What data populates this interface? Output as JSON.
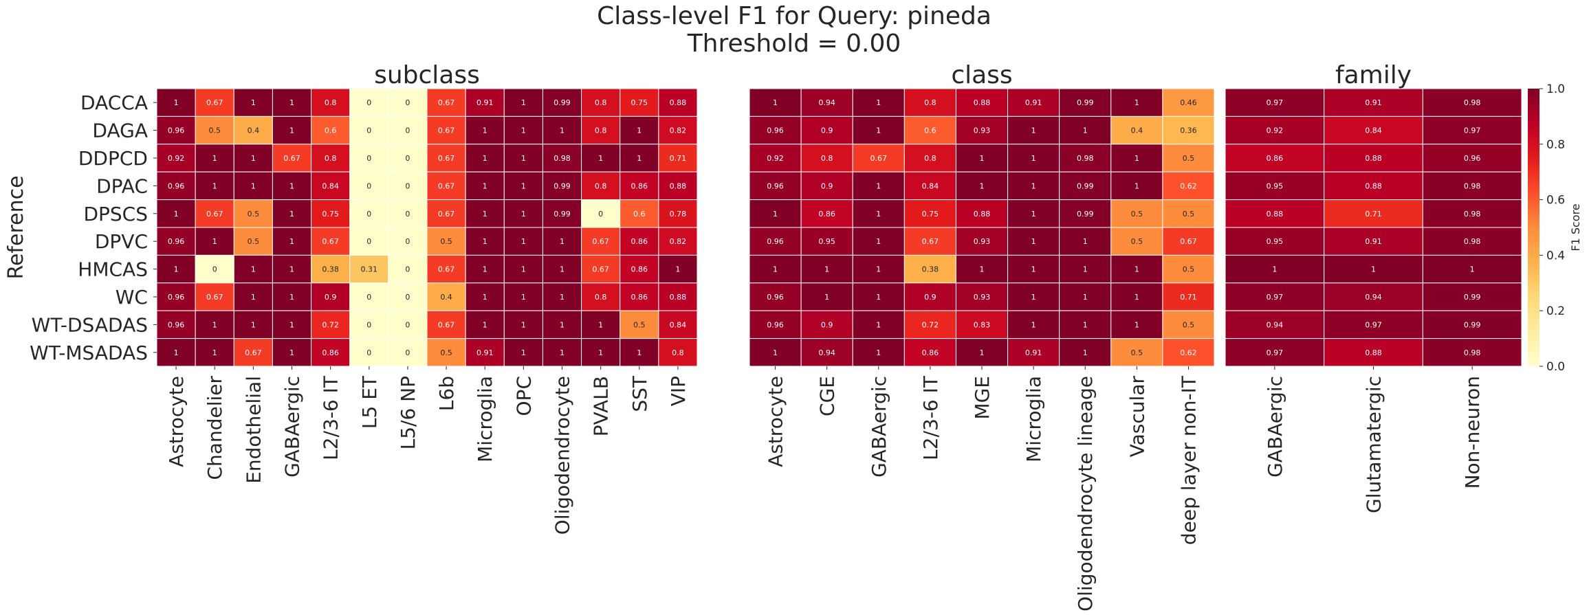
{
  "chart_data": {
    "type": "heatmap",
    "title": "Class-level F1 for Query: pineda",
    "subtitle": "Threshold = 0.00",
    "ylabel": "Reference",
    "rows": [
      "DACCA",
      "DAGA",
      "DDPCD",
      "DPAC",
      "DPSCS",
      "DPVC",
      "HMCAS",
      "WC",
      "WT-DSADAS",
      "WT-MSADAS"
    ],
    "colorbar": {
      "label": "F1 Score",
      "range": [
        0,
        1
      ],
      "ticks": [
        "0.0",
        "0.2",
        "0.4",
        "0.6",
        "0.8",
        "1.0"
      ]
    },
    "panels": [
      {
        "title": "subclass",
        "columns": [
          "Astrocyte",
          "Chandelier",
          "Endothelial",
          "GABAergic",
          "L2/3-6 IT",
          "L5 ET",
          "L5/6 NP",
          "L6b",
          "Microglia",
          "OPC",
          "Oligodendrocyte",
          "PVALB",
          "SST",
          "VIP"
        ],
        "values": [
          [
            "1",
            "0.67",
            "1",
            "1",
            "0.8",
            "0",
            "0",
            "0.67",
            "0.91",
            "1",
            "0.99",
            "0.8",
            "0.75",
            "0.88"
          ],
          [
            "0.96",
            "0.5",
            "0.4",
            "1",
            "0.6",
            "0",
            "0",
            "0.67",
            "1",
            "1",
            "1",
            "0.8",
            "1",
            "0.82"
          ],
          [
            "0.92",
            "1",
            "1",
            "0.67",
            "0.8",
            "0",
            "0",
            "0.67",
            "1",
            "1",
            "0.98",
            "1",
            "1",
            "0.71"
          ],
          [
            "0.96",
            "1",
            "1",
            "1",
            "0.84",
            "0",
            "0",
            "0.67",
            "1",
            "1",
            "0.99",
            "0.8",
            "0.86",
            "0.88"
          ],
          [
            "1",
            "0.67",
            "0.5",
            "1",
            "0.75",
            "0",
            "0",
            "0.67",
            "1",
            "1",
            "0.99",
            "0",
            "0.6",
            "0.78"
          ],
          [
            "0.96",
            "1",
            "0.5",
            "1",
            "0.67",
            "0",
            "0",
            "0.5",
            "1",
            "1",
            "1",
            "0.67",
            "0.86",
            "0.82"
          ],
          [
            "1",
            "0",
            "1",
            "1",
            "0.38",
            "0.31",
            "0",
            "0.67",
            "1",
            "1",
            "1",
            "0.67",
            "0.86",
            "1"
          ],
          [
            "0.96",
            "0.67",
            "1",
            "1",
            "0.9",
            "0",
            "0",
            "0.4",
            "1",
            "1",
            "1",
            "0.8",
            "0.86",
            "0.88"
          ],
          [
            "0.96",
            "1",
            "1",
            "1",
            "0.72",
            "0",
            "0",
            "0.67",
            "1",
            "1",
            "1",
            "1",
            "0.5",
            "0.84"
          ],
          [
            "1",
            "1",
            "0.67",
            "1",
            "0.86",
            "0",
            "0",
            "0.5",
            "0.91",
            "1",
            "1",
            "1",
            "1",
            "0.8"
          ]
        ]
      },
      {
        "title": "class",
        "columns": [
          "Astrocyte",
          "CGE",
          "GABAergic",
          "L2/3-6 IT",
          "MGE",
          "Microglia",
          "Oligodendrocyte lineage",
          "Vascular",
          "deep layer non-IT"
        ],
        "values": [
          [
            "1",
            "0.94",
            "1",
            "0.8",
            "0.88",
            "0.91",
            "0.99",
            "1",
            "0.46"
          ],
          [
            "0.96",
            "0.9",
            "1",
            "0.6",
            "0.93",
            "1",
            "1",
            "0.4",
            "0.36"
          ],
          [
            "0.92",
            "0.8",
            "0.67",
            "0.8",
            "1",
            "1",
            "0.98",
            "1",
            "0.5"
          ],
          [
            "0.96",
            "0.9",
            "1",
            "0.84",
            "1",
            "1",
            "0.99",
            "1",
            "0.62"
          ],
          [
            "1",
            "0.86",
            "1",
            "0.75",
            "0.88",
            "1",
            "0.99",
            "0.5",
            "0.5"
          ],
          [
            "0.96",
            "0.95",
            "1",
            "0.67",
            "0.93",
            "1",
            "1",
            "0.5",
            "0.67"
          ],
          [
            "1",
            "1",
            "1",
            "0.38",
            "1",
            "1",
            "1",
            "1",
            "0.5"
          ],
          [
            "0.96",
            "1",
            "1",
            "0.9",
            "0.93",
            "1",
            "1",
            "1",
            "0.71"
          ],
          [
            "0.96",
            "0.9",
            "1",
            "0.72",
            "0.83",
            "1",
            "1",
            "1",
            "0.5"
          ],
          [
            "1",
            "0.94",
            "1",
            "0.86",
            "1",
            "0.91",
            "1",
            "0.5",
            "0.62"
          ]
        ]
      },
      {
        "title": "family",
        "columns": [
          "GABAergic",
          "Glutamatergic",
          "Non-neuron"
        ],
        "values": [
          [
            "0.97",
            "0.91",
            "0.98"
          ],
          [
            "0.92",
            "0.84",
            "0.97"
          ],
          [
            "0.86",
            "0.88",
            "0.96"
          ],
          [
            "0.95",
            "0.88",
            "0.98"
          ],
          [
            "0.88",
            "0.71",
            "0.98"
          ],
          [
            "0.95",
            "0.91",
            "0.98"
          ],
          [
            "1",
            "1",
            "1"
          ],
          [
            "0.97",
            "0.94",
            "0.99"
          ],
          [
            "0.94",
            "0.97",
            "0.99"
          ],
          [
            "0.97",
            "0.88",
            "0.98"
          ]
        ]
      }
    ]
  }
}
